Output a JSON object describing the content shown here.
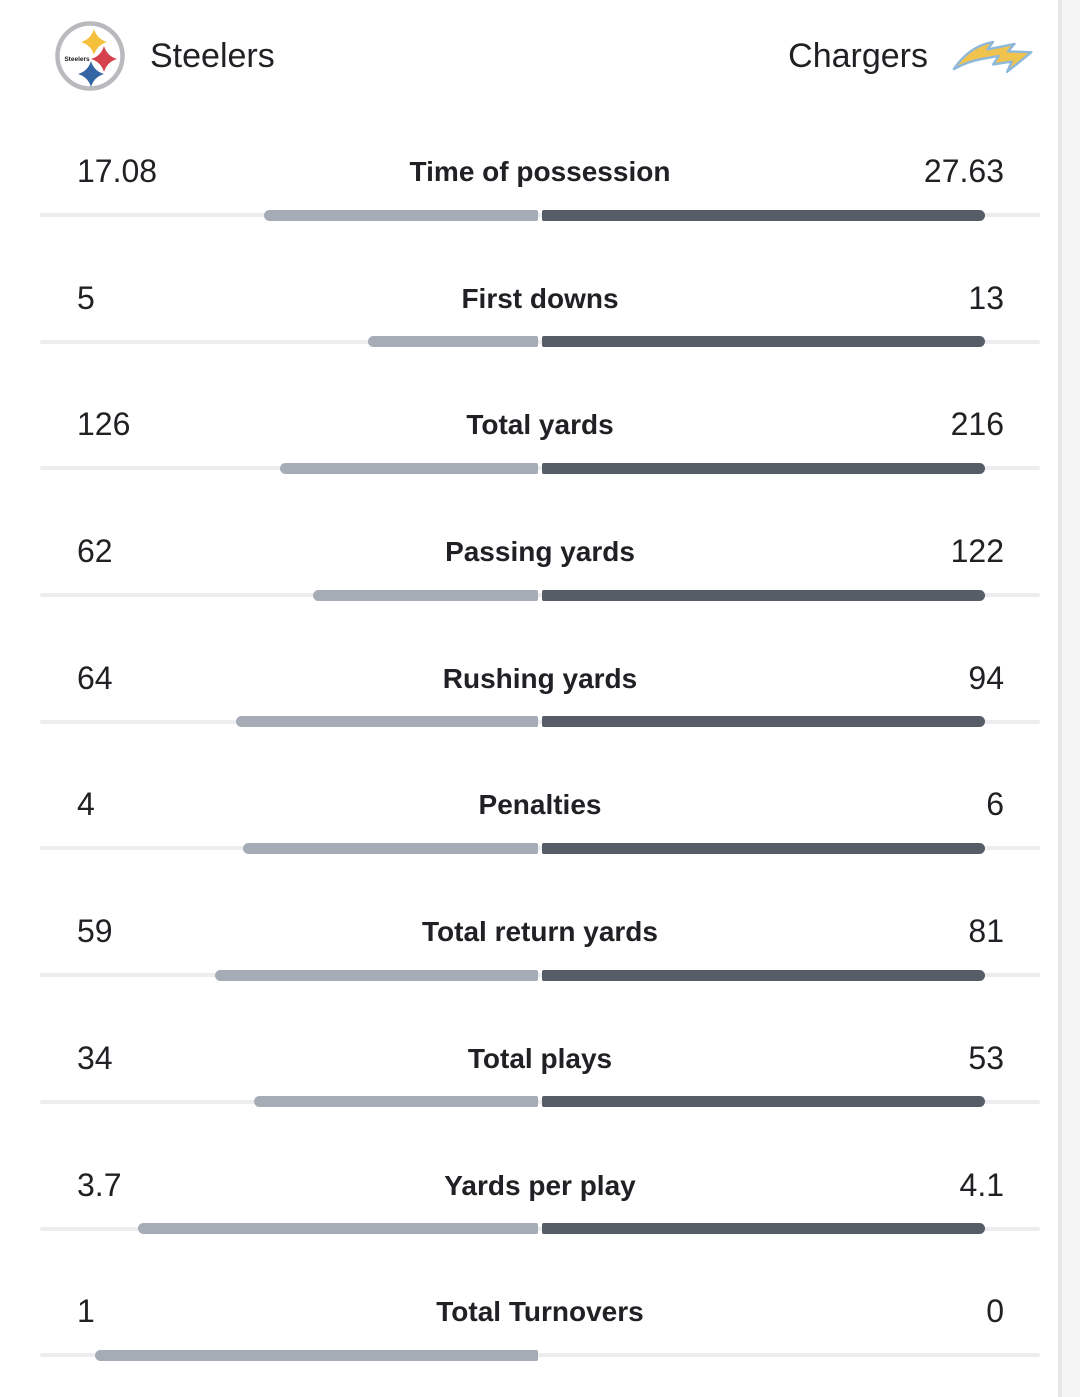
{
  "header": {
    "left": {
      "name": "Steelers",
      "logo": "steelers-logo"
    },
    "right": {
      "name": "Chargers",
      "logo": "chargers-bolt-logo"
    }
  },
  "colors": {
    "text": "#202124",
    "left_bar": "#a6acb6",
    "right_bar": "#565d67",
    "track": "#ebedef",
    "steelers_ring": "#b9babe",
    "steelers_gold": "#f5c13d",
    "steelers_red": "#d5414c",
    "steelers_blue": "#3365a4",
    "chargers_gold": "#f0c24e",
    "chargers_outline": "#8cb8da"
  },
  "chart_data": {
    "type": "bar",
    "subtype": "paired-horizontal-team-comparison",
    "legend_position": "top",
    "teams": [
      "Steelers",
      "Chargers"
    ],
    "categories": [
      "Time of possession",
      "First downs",
      "Total yards",
      "Passing yards",
      "Rushing yards",
      "Penalties",
      "Total return yards",
      "Total plays",
      "Yards per play",
      "Total Turnovers"
    ],
    "series": [
      {
        "name": "Steelers",
        "values": [
          17.08,
          5,
          126,
          62,
          64,
          4,
          59,
          34,
          3.7,
          1
        ]
      },
      {
        "name": "Chargers",
        "values": [
          27.63,
          13,
          216,
          122,
          94,
          6,
          81,
          53,
          4.1,
          0
        ]
      }
    ],
    "bar_scaling": "each row scaled so the larger value fills the half-width",
    "rows": [
      {
        "label": "Time of possession",
        "left": "17.08",
        "right": "27.63"
      },
      {
        "label": "First downs",
        "left": "5",
        "right": "13"
      },
      {
        "label": "Total yards",
        "left": "126",
        "right": "216"
      },
      {
        "label": "Passing yards",
        "left": "62",
        "right": "122"
      },
      {
        "label": "Rushing yards",
        "left": "64",
        "right": "94"
      },
      {
        "label": "Penalties",
        "left": "4",
        "right": "6"
      },
      {
        "label": "Total return yards",
        "left": "59",
        "right": "81"
      },
      {
        "label": "Total plays",
        "left": "34",
        "right": "53"
      },
      {
        "label": "Yards per play",
        "left": "3.7",
        "right": "4.1"
      },
      {
        "label": "Total Turnovers",
        "left": "1",
        "right": "0"
      }
    ]
  }
}
